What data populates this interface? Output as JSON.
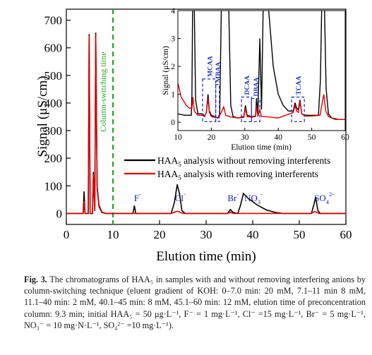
{
  "chart_data": {
    "main": {
      "type": "line",
      "xlabel": "Elution time (min)",
      "ylabel": "Signal (μS/cm)",
      "xlim": [
        0,
        60
      ],
      "ylim": [
        -40,
        740
      ],
      "xticks": [
        "0",
        "10",
        "20",
        "30",
        "40",
        "50",
        "60"
      ],
      "yticks": [
        "0",
        "100",
        "200",
        "300",
        "400",
        "500",
        "600",
        "700"
      ],
      "series": [
        {
          "name": "HAA5 analysis without removing interferents",
          "color": "#000000",
          "points": [
            [
              0,
              0
            ],
            [
              3.6,
              0
            ],
            [
              3.8,
              80
            ],
            [
              4.0,
              0
            ],
            [
              4.7,
              0
            ],
            [
              4.9,
              650
            ],
            [
              5.1,
              0
            ],
            [
              5.6,
              0
            ],
            [
              5.8,
              150
            ],
            [
              6.1,
              10
            ],
            [
              6.3,
              655
            ],
            [
              6.6,
              100
            ],
            [
              7.0,
              30
            ],
            [
              7.6,
              5
            ],
            [
              8.5,
              0
            ],
            [
              14.3,
              0
            ],
            [
              14.6,
              28
            ],
            [
              14.9,
              0
            ],
            [
              22.5,
              0
            ],
            [
              23.2,
              40
            ],
            [
              23.8,
              105
            ],
            [
              24.3,
              70
            ],
            [
              24.8,
              10
            ],
            [
              25.5,
              0
            ],
            [
              34.6,
              0
            ],
            [
              35.2,
              14
            ],
            [
              35.8,
              3
            ],
            [
              36.8,
              0
            ],
            [
              37.4,
              30
            ],
            [
              38.0,
              72
            ],
            [
              39.0,
              55
            ],
            [
              41.0,
              30
            ],
            [
              43.0,
              12
            ],
            [
              45.0,
              3
            ],
            [
              46.5,
              0
            ],
            [
              52.6,
              0
            ],
            [
              53.1,
              30
            ],
            [
              53.5,
              58
            ],
            [
              54.0,
              10
            ],
            [
              54.5,
              0
            ],
            [
              60,
              0
            ]
          ]
        },
        {
          "name": "HAA5 analysis with removing interferents",
          "color": "#e00000",
          "points": [
            [
              0,
              0
            ],
            [
              3.6,
              0
            ],
            [
              3.8,
              45
            ],
            [
              4.0,
              0
            ],
            [
              4.7,
              0
            ],
            [
              4.9,
              645
            ],
            [
              5.1,
              0
            ],
            [
              5.6,
              0
            ],
            [
              5.8,
              140
            ],
            [
              6.1,
              8
            ],
            [
              6.3,
              650
            ],
            [
              6.6,
              90
            ],
            [
              7.0,
              25
            ],
            [
              7.6,
              3
            ],
            [
              8.5,
              0
            ],
            [
              22.5,
              0
            ],
            [
              23.8,
              8
            ],
            [
              25,
              0
            ],
            [
              34.6,
              0
            ],
            [
              35.2,
              4
            ],
            [
              35.8,
              0
            ],
            [
              52.6,
              0
            ],
            [
              53.3,
              7
            ],
            [
              54.2,
              0
            ],
            [
              60,
              0
            ]
          ]
        }
      ],
      "annotations": {
        "column_switching_time": {
          "x": 10,
          "label": "Column-switching time"
        },
        "peaks": [
          {
            "x": 14.5,
            "y": 45,
            "label": "F",
            "charge": "-"
          },
          {
            "x": 23.3,
            "y": 45,
            "label": "Cl",
            "charge": "-"
          },
          {
            "x": 34.6,
            "y": 45,
            "label": "Br",
            "charge": "-"
          },
          {
            "x": 38.2,
            "y": 45,
            "label": "NO",
            "sub": "3",
            "charge": "-"
          },
          {
            "x": 53.2,
            "y": 45,
            "label": "SO",
            "sub": "4",
            "charge": "2-"
          }
        ]
      },
      "legend": {
        "placement": "lower-right-of-upper-area",
        "entries": [
          {
            "prefix": "HAA",
            "sub": "5",
            "rest": " analysis without removing interferents",
            "color": "#000000"
          },
          {
            "prefix": "HAA",
            "sub": "5",
            "rest": " analysis with removing interferents",
            "color": "#e00000"
          }
        ]
      }
    },
    "inset": {
      "type": "line",
      "xlabel": "Elution time (min)",
      "ylabel": "Signal (μS/cm)",
      "xlim": [
        10,
        60
      ],
      "ylim": [
        -0.3,
        4
      ],
      "xticks": [
        "10",
        "20",
        "30",
        "40",
        "50",
        "60"
      ],
      "yticks": [
        "0",
        "1",
        "2",
        "3",
        "4"
      ],
      "series": [
        {
          "name": "without",
          "color": "#000000",
          "points": [
            [
              10,
              0.3
            ],
            [
              12,
              0.25
            ],
            [
              14,
              0.25
            ],
            [
              14.2,
              1
            ],
            [
              14.4,
              4.2
            ],
            [
              14.9,
              4.2
            ],
            [
              15.3,
              0.8
            ],
            [
              16,
              0.3
            ],
            [
              17.4,
              0.3
            ],
            [
              18,
              0.2
            ],
            [
              18.5,
              0.35
            ],
            [
              19,
              1.0
            ],
            [
              19.4,
              0.4
            ],
            [
              20,
              0.25
            ],
            [
              21,
              0.2
            ],
            [
              22,
              0.15
            ],
            [
              22.5,
              0.3
            ],
            [
              23,
              4.2
            ],
            [
              25.2,
              4.2
            ],
            [
              25.8,
              0.6
            ],
            [
              26.5,
              0.2
            ],
            [
              28,
              0.15
            ],
            [
              29.7,
              0.2
            ],
            [
              30.2,
              0.6
            ],
            [
              30.7,
              0.25
            ],
            [
              32,
              0.2
            ],
            [
              33.2,
              0.22
            ],
            [
              33.5,
              0.85
            ],
            [
              33.9,
              0.28
            ],
            [
              34.5,
              3.0
            ],
            [
              35.0,
              0.45
            ],
            [
              35.5,
              4.2
            ],
            [
              37.0,
              4.2
            ],
            [
              38.5,
              2.0
            ],
            [
              40,
              1.0
            ],
            [
              41.5,
              0.6
            ],
            [
              43,
              0.4
            ],
            [
              44.5,
              0.4
            ],
            [
              45,
              0.7
            ],
            [
              45.5,
              0.5
            ],
            [
              46,
              0.45
            ],
            [
              46.5,
              0.8
            ],
            [
              47,
              0.3
            ],
            [
              48,
              0.25
            ],
            [
              50,
              0.25
            ],
            [
              52,
              0.25
            ],
            [
              52.6,
              1.5
            ],
            [
              53.0,
              4.2
            ],
            [
              53.8,
              4.2
            ],
            [
              54.3,
              1.2
            ],
            [
              55,
              0.3
            ],
            [
              56,
              0.15
            ],
            [
              58,
              0.1
            ],
            [
              60,
              0.1
            ]
          ]
        },
        {
          "name": "with",
          "color": "#e00000",
          "points": [
            [
              10,
              1.4
            ],
            [
              11,
              0.9
            ],
            [
              12.5,
              0.6
            ],
            [
              13.5,
              0.5
            ],
            [
              14.2,
              0.5
            ],
            [
              14.5,
              0.9
            ],
            [
              14.9,
              0.4
            ],
            [
              16,
              0.25
            ],
            [
              17.4,
              0.25
            ],
            [
              18,
              0.2
            ],
            [
              18.5,
              0.35
            ],
            [
              19,
              0.85
            ],
            [
              19.4,
              0.35
            ],
            [
              20,
              0.2
            ],
            [
              22,
              0.15
            ],
            [
              23,
              0.35
            ],
            [
              23.7,
              0.55
            ],
            [
              24.3,
              0.25
            ],
            [
              26,
              0.18
            ],
            [
              28,
              0.15
            ],
            [
              29.7,
              0.17
            ],
            [
              30.2,
              0.5
            ],
            [
              30.7,
              0.2
            ],
            [
              32,
              0.18
            ],
            [
              33.2,
              0.2
            ],
            [
              33.5,
              0.6
            ],
            [
              33.9,
              0.2
            ],
            [
              34.5,
              0.45
            ],
            [
              35,
              0.2
            ],
            [
              36,
              0.2
            ],
            [
              40,
              0.15
            ],
            [
              44.5,
              0.35
            ],
            [
              45,
              0.6
            ],
            [
              45.5,
              0.4
            ],
            [
              46,
              0.35
            ],
            [
              46.5,
              0.75
            ],
            [
              47,
              0.3
            ],
            [
              48,
              0.22
            ],
            [
              50,
              0.22
            ],
            [
              52.5,
              0.25
            ],
            [
              53,
              0.6
            ],
            [
              53.6,
              1.0
            ],
            [
              54.2,
              0.4
            ],
            [
              55,
              0.2
            ],
            [
              57,
              0.1
            ],
            [
              60,
              0.1
            ]
          ]
        }
      ],
      "highlight_boxes": [
        {
          "x0": 17.4,
          "x1": 21.3,
          "y0": 0.02,
          "y1": 1.55,
          "label": "MCAA"
        },
        {
          "x0": 21.3,
          "x1": 22.4,
          "y0": 0.02,
          "y1": 1.35,
          "label": "MBAA"
        },
        {
          "x0": 29.0,
          "x1": 32.0,
          "y0": 0.02,
          "y1": 0.9,
          "label": "DCAA"
        },
        {
          "x0": 32.0,
          "x1": 34.5,
          "y0": 0.02,
          "y1": 0.85,
          "label": "DBAA"
        },
        {
          "x0": 44.0,
          "x1": 47.8,
          "y0": 0.02,
          "y1": 0.9,
          "label": "TCAA"
        }
      ]
    }
  },
  "caption": {
    "figure_label": "Fig. 3.",
    "text": "The chromatograms of HAA₅ in samples with and without removing interfering anions by column-switching technique (eluent gradient of KOH: 0–7.0 min: 20 mM, 7.1–11 min 8 mM, 11.1–40 min: 2 mM, 40.1–45 min: 8 mM, 45.1–60 min: 12 mM, elution time of preconcentration column: 9.3 min; initial HAA₅ = 50 μg·L⁻¹, F⁻ = 1 mg·L⁻¹, Cl⁻ =15 mg·L⁻¹, Br⁻ = 5 mg·L⁻¹, NO₃⁻ = 10 mg·N·L⁻¹, SO₄²⁻ =10 mg·L⁻¹)."
  }
}
